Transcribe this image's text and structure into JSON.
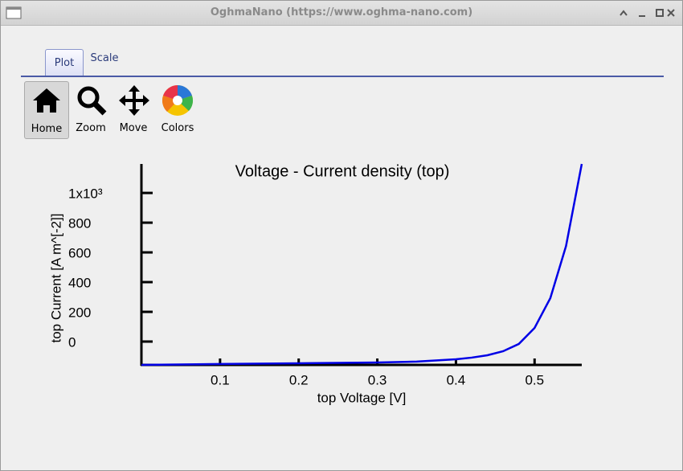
{
  "window": {
    "title": "OghmaNano (https://www.oghma-nano.com)"
  },
  "tabs": [
    "Plot",
    "Scale"
  ],
  "toolbar": [
    "Home",
    "Zoom",
    "Move",
    "Colors"
  ],
  "chart_data": {
    "type": "line",
    "title": "Voltage - Current density (top)",
    "x_label": "top Voltage [V]",
    "y_label": "top Current [A m^[-2]]",
    "x": [
      0,
      0.1,
      0.2,
      0.3,
      0.35,
      0.4,
      0.42,
      0.44,
      0.46,
      0.48,
      0.5,
      0.52,
      0.54,
      0.56
    ],
    "series": [
      {
        "color": "#0000e6",
        "values": [
          -157,
          -151,
          -146,
          -141,
          -135,
          -119,
          -108,
          -92,
          -65,
          -16,
          92,
          292,
          643,
          1195
        ]
      }
    ],
    "xlim": [
      0,
      0.56
    ],
    "ylim": [
      -157,
      1195
    ],
    "xticks": [
      0.1,
      0.2,
      0.3,
      0.4,
      0.5
    ],
    "yticks": [
      0,
      200,
      400,
      600,
      800,
      {
        "value": 1000,
        "label": "1x10³"
      }
    ]
  }
}
